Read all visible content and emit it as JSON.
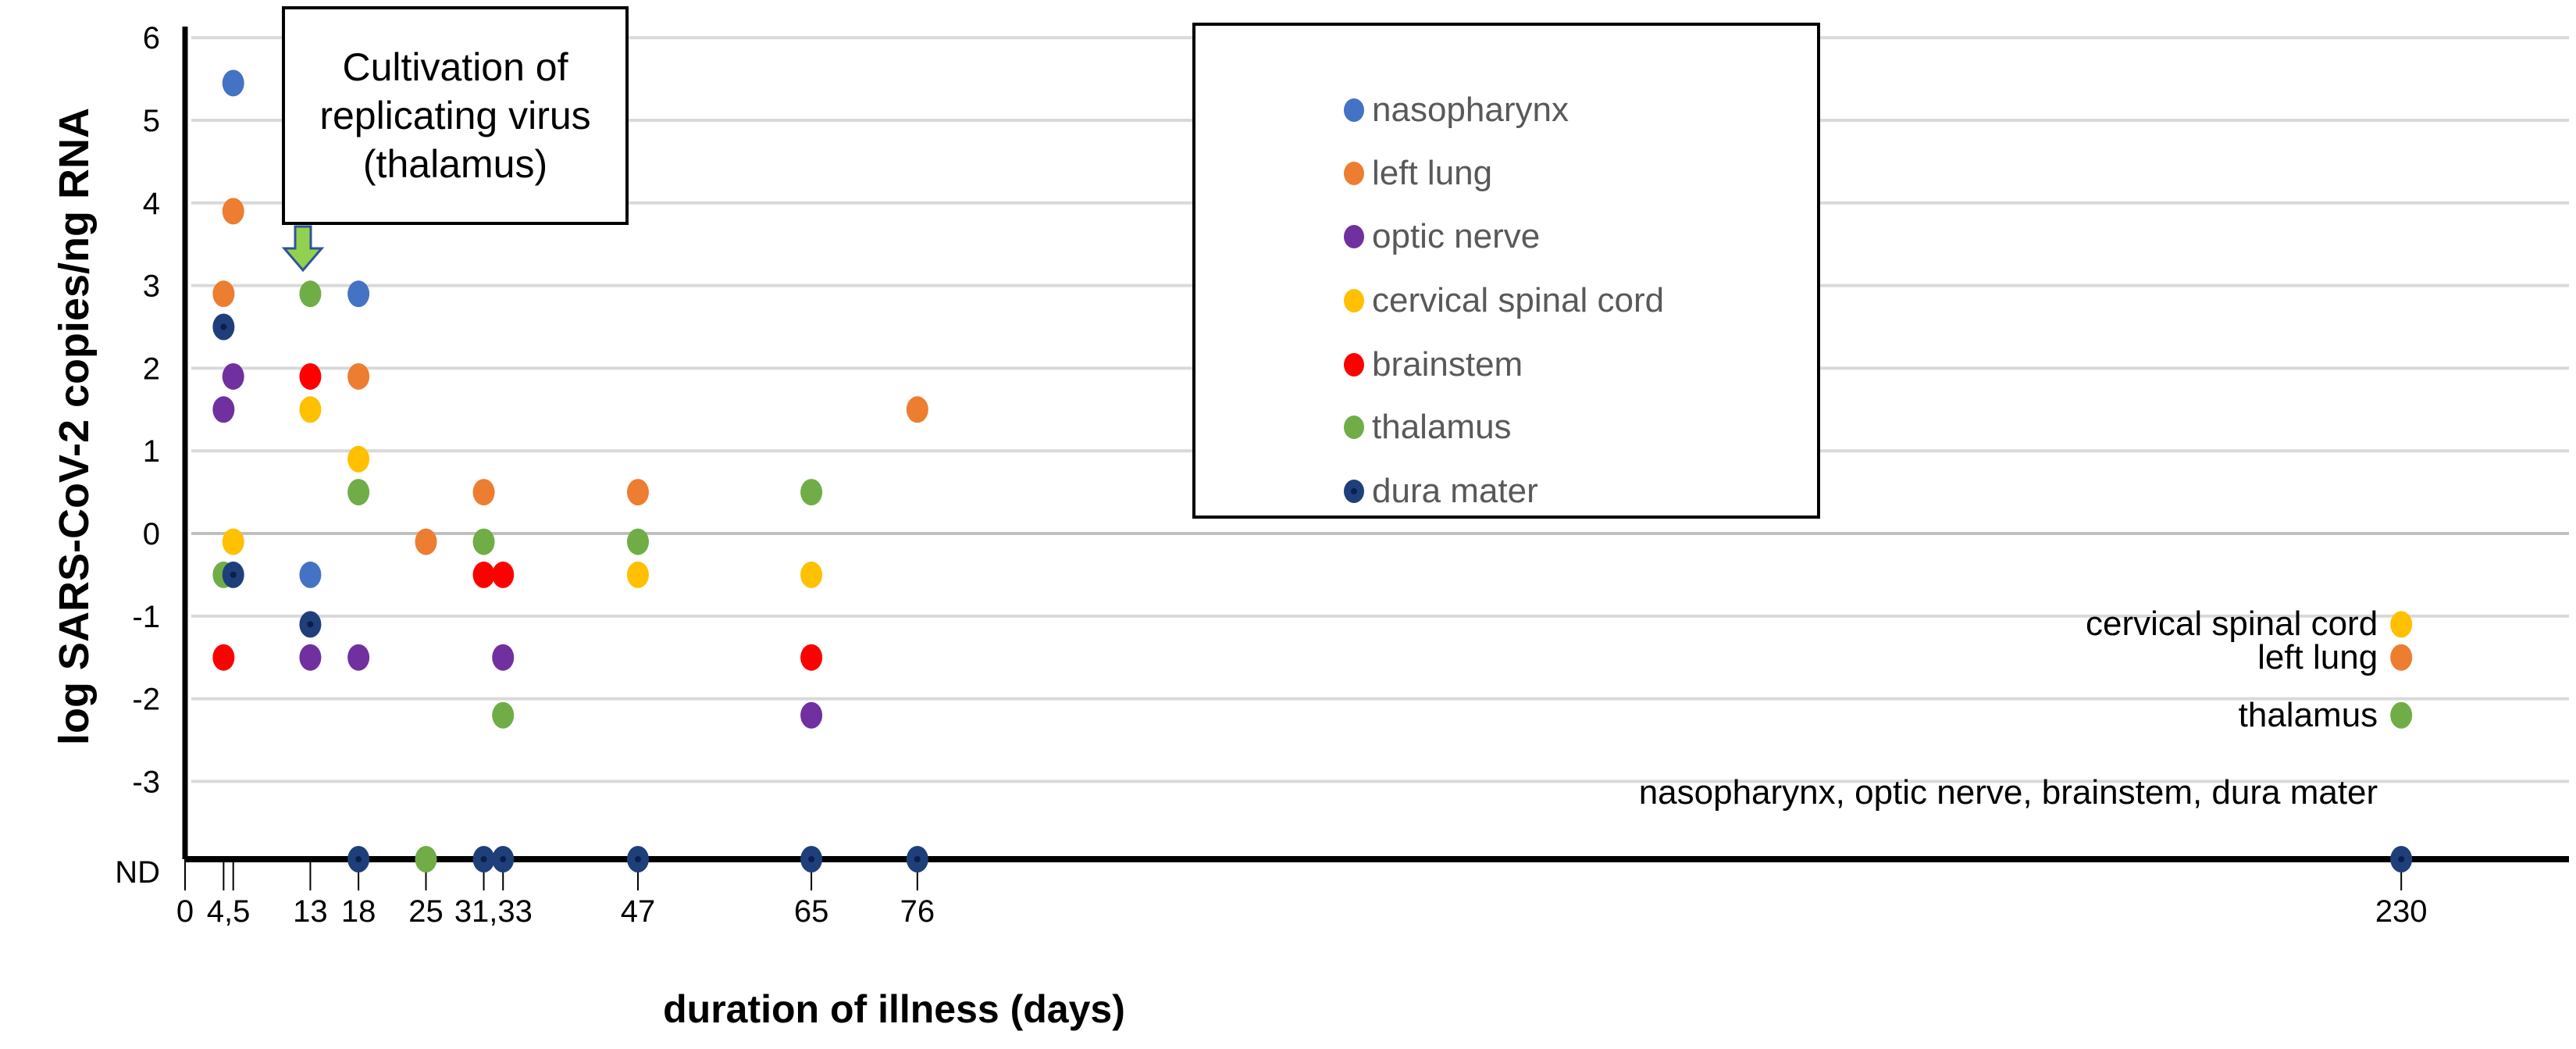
{
  "chart_data": {
    "type": "scatter",
    "xlabel": "duration of illness (days)",
    "ylabel": "log SARS-CoV-2 copies/ng RNA",
    "xlim": [
      0,
      247
    ],
    "ylim": [
      "ND",
      6
    ],
    "grid": true,
    "legend_position": "top-right",
    "y_ticks": [
      "6",
      "5",
      "4",
      "3",
      "2",
      "1",
      "0",
      "-1",
      "-2",
      "-3",
      "ND"
    ],
    "x_ticks": [
      0,
      4,
      5,
      13,
      18,
      25,
      31,
      33,
      47,
      65,
      76,
      230
    ],
    "x_tick_labels": [
      {
        "day": 0,
        "label": "0"
      },
      {
        "day": 4.5,
        "label": "4,5"
      },
      {
        "day": 13,
        "label": "13"
      },
      {
        "day": 18,
        "label": "18"
      },
      {
        "day": 25,
        "label": "25"
      },
      {
        "day": 32,
        "label": "31,33"
      },
      {
        "day": 47,
        "label": "47"
      },
      {
        "day": 65,
        "label": "65"
      },
      {
        "day": 76,
        "label": "76"
      },
      {
        "day": 230,
        "label": "230"
      }
    ],
    "series": [
      {
        "name": "nasopharynx",
        "color": "#4472C4",
        "points": [
          [
            5,
            5.45
          ],
          [
            13,
            -0.5
          ],
          [
            18,
            2.9
          ]
        ]
      },
      {
        "name": "left lung",
        "color": "#ED7D31",
        "points": [
          [
            4,
            2.9
          ],
          [
            5,
            3.9
          ],
          [
            18,
            1.9
          ],
          [
            25,
            -0.1
          ],
          [
            31,
            0.5
          ],
          [
            47,
            0.5
          ],
          [
            76,
            1.5
          ],
          [
            230,
            -1.5
          ]
        ]
      },
      {
        "name": "optic nerve",
        "color": "#7030A0",
        "points": [
          [
            4,
            1.5
          ],
          [
            5,
            1.9
          ],
          [
            13,
            -1.5
          ],
          [
            18,
            -1.5
          ],
          [
            33,
            -1.5
          ],
          [
            65,
            -2.2
          ]
        ]
      },
      {
        "name": "cervical spinal cord",
        "color": "#FFC000",
        "points": [
          [
            5,
            -0.1
          ],
          [
            13,
            1.5
          ],
          [
            18,
            0.9
          ],
          [
            47,
            -0.5
          ],
          [
            65,
            -0.5
          ],
          [
            230,
            -1.1
          ]
        ]
      },
      {
        "name": "brainstem",
        "color": "#FF0000",
        "points": [
          [
            4,
            -1.5
          ],
          [
            13,
            1.9
          ],
          [
            31,
            -0.5
          ],
          [
            33,
            -0.5
          ],
          [
            65,
            -1.5
          ]
        ]
      },
      {
        "name": "thalamus",
        "color": "#70AD47",
        "points": [
          [
            4,
            -0.5
          ],
          [
            13,
            2.9
          ],
          [
            18,
            0.5
          ],
          [
            25,
            "ND"
          ],
          [
            31,
            -0.1
          ],
          [
            33,
            -2.2
          ],
          [
            47,
            -0.1
          ],
          [
            65,
            0.5
          ],
          [
            230,
            -2.2
          ]
        ]
      },
      {
        "name": "dura mater",
        "color": "#1F3F7A",
        "points": [
          [
            4,
            2.5
          ],
          [
            5,
            -0.5
          ],
          [
            13,
            -1.1
          ],
          [
            18,
            "ND"
          ],
          [
            31,
            "ND"
          ],
          [
            33,
            "ND"
          ],
          [
            47,
            "ND"
          ],
          [
            65,
            "ND"
          ],
          [
            76,
            "ND"
          ],
          [
            230,
            "ND"
          ]
        ]
      }
    ],
    "annotations": {
      "cultivation": "Cultivation of\nreplicating virus\n(thalamus)",
      "day230_labels": [
        {
          "text": "cervical spinal cord",
          "value": -1.1
        },
        {
          "text": "left lung",
          "value": -1.5
        },
        {
          "text": "thalamus",
          "value": -2.2
        },
        {
          "text": "nasopharynx, optic nerve, brainstem, dura mater",
          "value": "ND"
        }
      ]
    }
  }
}
